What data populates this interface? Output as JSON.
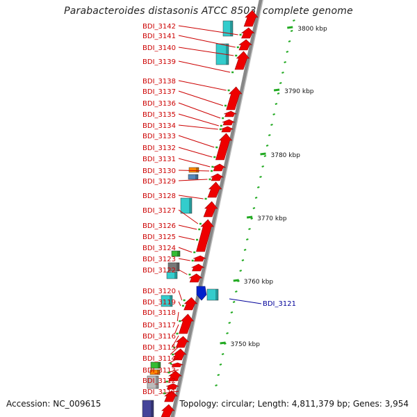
{
  "title": "Parabacteroides distasonis ATCC 8503, complete genome",
  "footer": {
    "accession": "Accession: NC_009615",
    "summary": "Topology: circular; Length: 4,811,379 bp; Genes: 3,954"
  },
  "scale_labels": [
    "3800 kbp",
    "3790 kbp",
    "3780 kbp",
    "3770 kbp",
    "3760 kbp",
    "3750 kbp"
  ],
  "left_genes": [
    "BDI_3142",
    "BDI_3141",
    "BDI_3140",
    "BDI_3139",
    "BDI_3138",
    "BDI_3137",
    "BDI_3136",
    "BDI_3135",
    "BDI_3134",
    "BDI_3133",
    "BDI_3132",
    "BDI_3131",
    "BDI_3130",
    "BDI_3129",
    "BDI_3128",
    "BDI_3127",
    "BDI_3126",
    "BDI_3125",
    "BDI_3124",
    "BDI_3123",
    "BDI_3122",
    "BDI_3120",
    "BDI_3119",
    "BDI_3118",
    "BDI_3117",
    "BDI_3116",
    "BDI_3115",
    "BDI_3114",
    "BDI_3113",
    "BDI_3112",
    "BDI_3111"
  ],
  "right_genes": [
    "BDI_3121"
  ],
  "colors": {
    "gene_label": "#cc0000",
    "gene_label_right": "#000099",
    "cds_arrow": "#ee0000",
    "feature_cyan": "#33cccc",
    "feature_gray": "#777777",
    "feature_orange": "#ff8800",
    "feature_steel": "#5588bb",
    "feature_green": "#33bb33",
    "feature_navy": "#444499",
    "feature_blue": "#0022cc",
    "backbone": "#888888",
    "scale_dash": "#22aa22"
  }
}
